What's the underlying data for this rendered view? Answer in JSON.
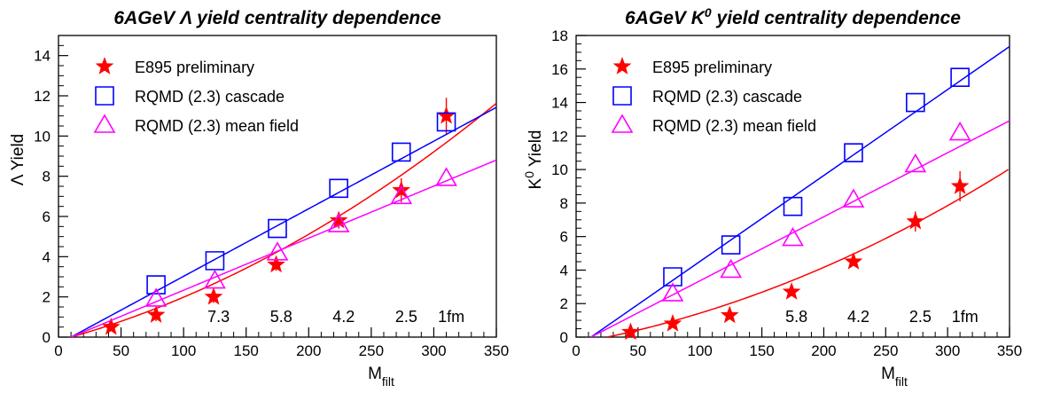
{
  "chart_data": [
    {
      "type": "scatter",
      "title": "6AGeV Λ yield centrality dependence",
      "xlabel": "M",
      "xlabel_sub": "filt",
      "ylabel": "Λ Yield",
      "xlim": [
        0,
        350
      ],
      "ylim": [
        0,
        15
      ],
      "xticks": [
        0,
        50,
        100,
        150,
        200,
        250,
        300,
        350
      ],
      "yticks": [
        0,
        2,
        4,
        6,
        8,
        10,
        12,
        14
      ],
      "legend_position": "top-left",
      "annotations": [
        {
          "text": "7.3",
          "x": 128
        },
        {
          "text": "5.8",
          "x": 178
        },
        {
          "text": "4.2",
          "x": 228
        },
        {
          "text": "2.5",
          "x": 278
        },
        {
          "text": "1fm",
          "x": 314
        }
      ],
      "series": [
        {
          "name": "E895 preliminary",
          "marker": "star",
          "color": "#ff0000",
          "x": [
            42,
            78,
            124,
            174,
            224,
            274,
            310
          ],
          "y": [
            0.5,
            1.1,
            2.0,
            3.6,
            5.8,
            7.3,
            11.0
          ],
          "err": [
            0.2,
            0.3,
            0.3,
            0.3,
            0.4,
            0.6,
            0.9
          ],
          "fit": {
            "x0": 10,
            "a": 0.0177,
            "b": 4.85e-05
          }
        },
        {
          "name": "RQMD (2.3) cascade",
          "marker": "square",
          "color": "#0000ff",
          "x": [
            78,
            125,
            175,
            224,
            274,
            310
          ],
          "y": [
            2.6,
            3.8,
            5.4,
            7.4,
            9.2,
            10.7
          ],
          "fit": {
            "x0": 10,
            "a": 0.0336,
            "b": 0
          }
        },
        {
          "name": "RQMD (2.3) mean field",
          "marker": "triangle",
          "color": "#ff00ff",
          "x": [
            78,
            125,
            175,
            224,
            274,
            310
          ],
          "y": [
            1.9,
            2.8,
            4.2,
            5.6,
            7.0,
            7.9
          ],
          "fit": {
            "x0": 10,
            "a": 0.0259,
            "b": 0
          }
        }
      ]
    },
    {
      "type": "scatter",
      "title": "6AGeV K",
      "title_sup": "0",
      "title_rest": " yield centrality dependence",
      "xlabel": "M",
      "xlabel_sub": "filt",
      "ylabel": "K",
      "ylabel_sup": "0",
      "ylabel_rest": " Yield",
      "xlim": [
        0,
        350
      ],
      "ylim": [
        0,
        18
      ],
      "xticks": [
        0,
        50,
        100,
        150,
        200,
        250,
        300,
        350
      ],
      "yticks": [
        0,
        2,
        4,
        6,
        8,
        10,
        12,
        14,
        16,
        18
      ],
      "legend_position": "top-left",
      "annotations": [
        {
          "text": "5.8",
          "x": 178
        },
        {
          "text": "4.2",
          "x": 228
        },
        {
          "text": "2.5",
          "x": 278
        },
        {
          "text": "1fm",
          "x": 314
        }
      ],
      "series": [
        {
          "name": "E895 preliminary",
          "marker": "star",
          "color": "#ff0000",
          "x": [
            44,
            78,
            124,
            174,
            224,
            274,
            310
          ],
          "y": [
            0.3,
            0.8,
            1.3,
            2.7,
            4.5,
            6.9,
            9.0
          ],
          "err": [
            0.1,
            0.1,
            0.2,
            0.2,
            0.2,
            0.6,
            0.9
          ],
          "fit": {
            "x0": 25,
            "a": 0.0155,
            "b": 4.74e-05
          }
        },
        {
          "name": "RQMD (2.3) cascade",
          "marker": "square",
          "color": "#0000ff",
          "x": [
            78,
            125,
            175,
            224,
            274,
            310
          ],
          "y": [
            3.6,
            5.5,
            7.8,
            11.0,
            14.0,
            15.5
          ],
          "fit": {
            "x0": 12,
            "a": 0.0513,
            "b": 0
          }
        },
        {
          "name": "RQMD (2.3) mean field",
          "marker": "triangle",
          "color": "#ff00ff",
          "x": [
            78,
            125,
            175,
            224,
            274,
            310
          ],
          "y": [
            2.6,
            4.0,
            5.9,
            8.2,
            10.3,
            12.2
          ],
          "fit": {
            "x0": 12,
            "a": 0.0382,
            "b": 0
          }
        }
      ]
    }
  ]
}
